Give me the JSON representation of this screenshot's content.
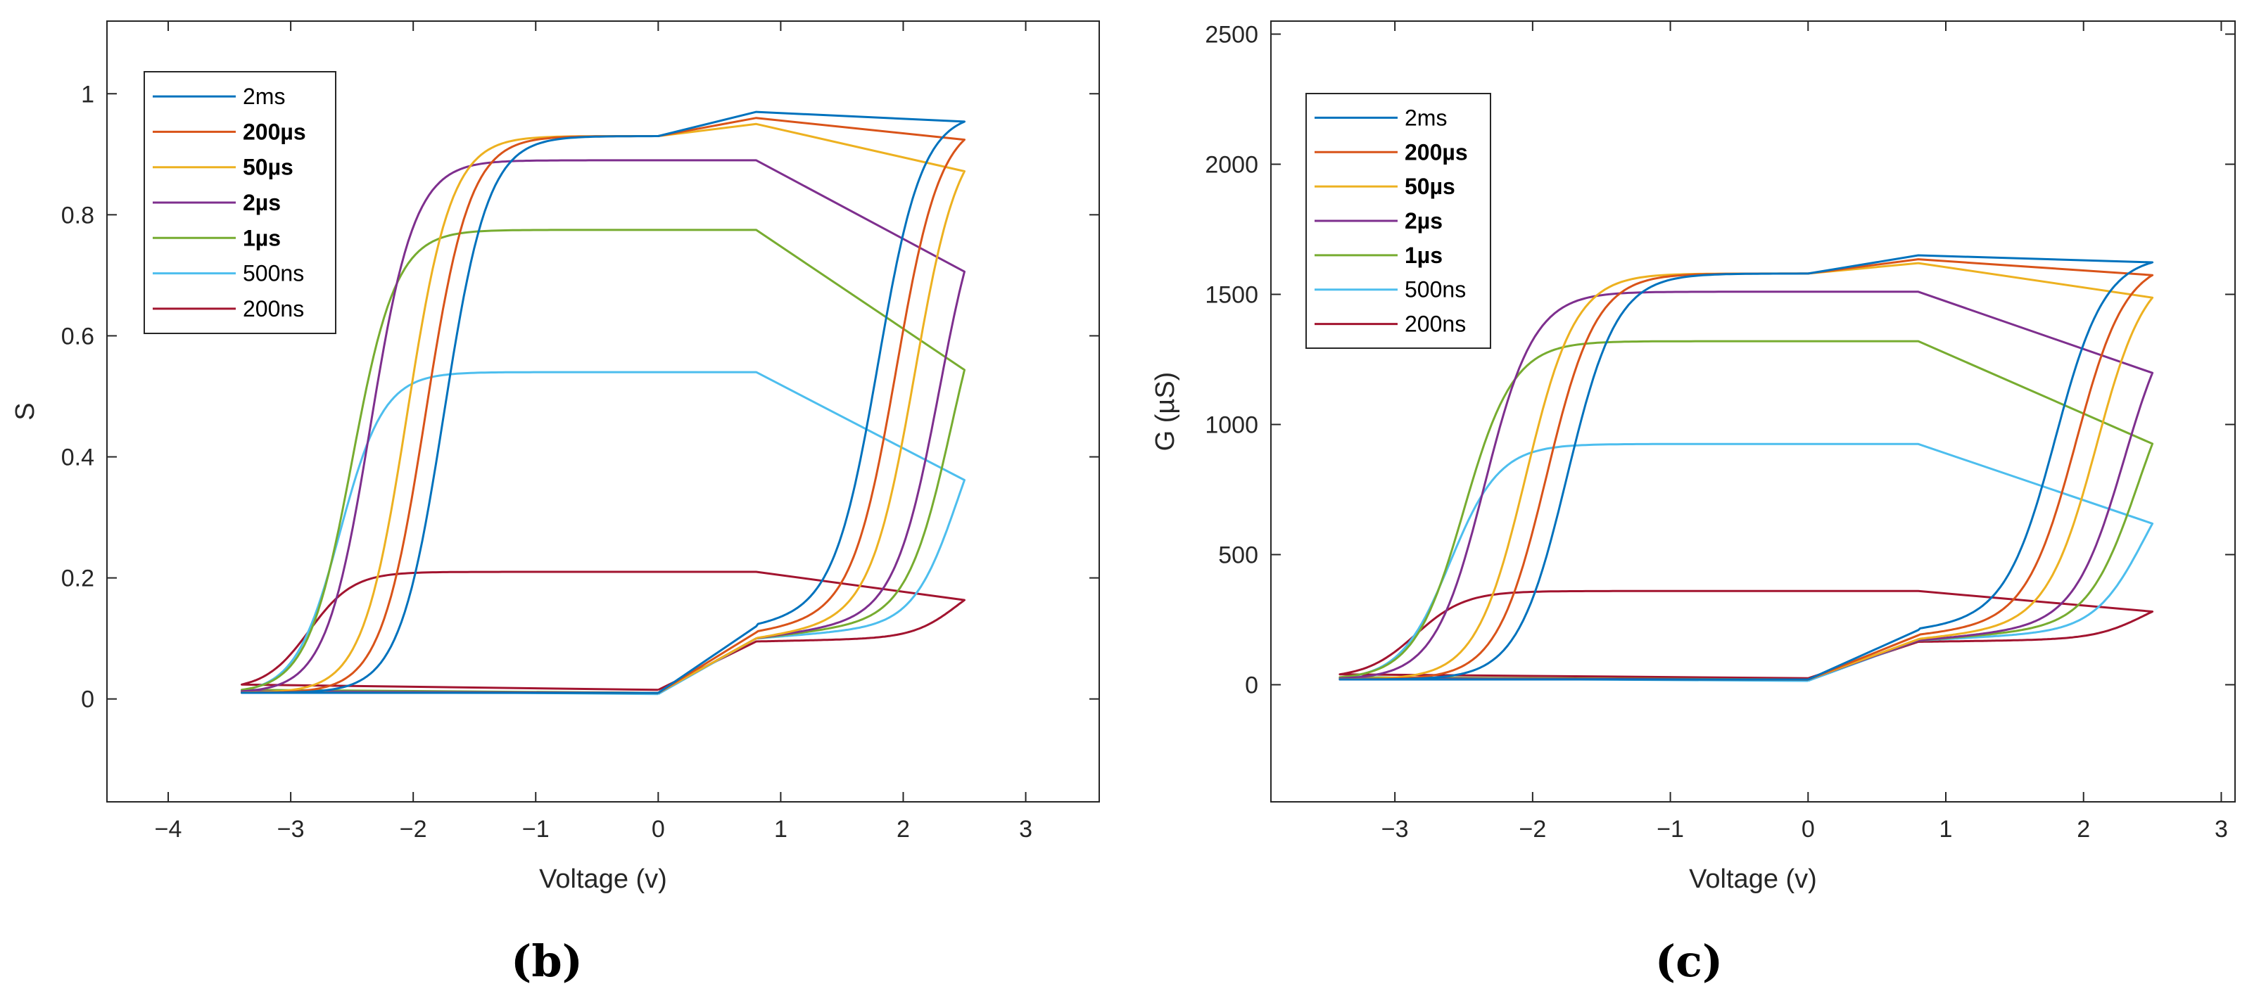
{
  "colors": {
    "2ms": "#0072BD",
    "200us": "#D95319",
    "50us": "#EDB120",
    "2us": "#7E2F8E",
    "1us": "#77AC30",
    "500ns": "#4DBEEE",
    "200ns": "#A2142F",
    "axis": "#262626"
  },
  "chart_data": [
    {
      "type": "line",
      "panel": "(b)",
      "xlabel": "Voltage (v)",
      "ylabel": "S",
      "xlim": [
        -4.5,
        3.6
      ],
      "ylim": [
        -0.17,
        1.12
      ],
      "xticks": [
        -4,
        -3,
        -2,
        -1,
        0,
        1,
        2,
        3
      ],
      "xtick_labels": [
        "−4",
        "−3",
        "−2",
        "−1",
        "0",
        "1",
        "2",
        "3"
      ],
      "yticks": [
        0,
        0.2,
        0.4,
        0.6,
        0.8,
        1
      ],
      "ytick_labels": [
        "0",
        "0.2",
        "0.4",
        "0.6",
        "0.8",
        "1"
      ],
      "legend_position": "top-left",
      "sweep": {
        "vmin": -3.4,
        "vmax": 2.5,
        "vmid": 0.8
      },
      "series": [
        {
          "name": "2ms",
          "label_bold": false,
          "color_key": "2ms",
          "high": 0.97,
          "low": 0.01,
          "mid_low": 0.12,
          "set_v": 1.8,
          "reset_v": -1.75,
          "slope": 0.0048,
          "plateau_hi_start": 0.93
        },
        {
          "name": "200µs",
          "label_bold": true,
          "color_key": "200us",
          "high": 0.96,
          "low": 0.01,
          "mid_low": 0.11,
          "set_v": 1.95,
          "reset_v": -1.9,
          "slope": 0.0048,
          "plateau_hi_start": 0.93
        },
        {
          "name": "50µs",
          "label_bold": true,
          "color_key": "50us",
          "high": 0.95,
          "low": 0.01,
          "mid_low": 0.1,
          "set_v": 2.1,
          "reset_v": -2.05,
          "slope": 0.0048,
          "plateau_hi_start": 0.93
        },
        {
          "name": "2µs",
          "label_bold": true,
          "color_key": "2us",
          "high": 0.89,
          "low": 0.01,
          "mid_low": 0.1,
          "set_v": 2.3,
          "reset_v": -2.35,
          "slope": 0.003,
          "plateau_hi_start": 0.89
        },
        {
          "name": "1µs",
          "label_bold": true,
          "color_key": "1us",
          "high": 0.775,
          "low": 0.01,
          "mid_low": 0.1,
          "set_v": 2.4,
          "reset_v": -2.5,
          "slope": 0.003,
          "plateau_hi_start": 0.775
        },
        {
          "name": "500ns",
          "label_bold": false,
          "color_key": "500ns",
          "high": 0.54,
          "low": 0.008,
          "mid_low": 0.1,
          "set_v": 2.45,
          "reset_v": -2.6,
          "slope": 0.003,
          "plateau_hi_start": 0.54
        },
        {
          "name": "200ns",
          "label_bold": false,
          "color_key": "200ns",
          "high": 0.21,
          "low": 0.015,
          "mid_low": 0.095,
          "set_v": 2.45,
          "reset_v": -2.85,
          "slope": 0.003,
          "plateau_hi_start": 0.21
        }
      ]
    },
    {
      "type": "line",
      "panel": "(c)",
      "xlabel": "Voltage (v)",
      "ylabel": "G (µS)",
      "xlim": [
        -3.9,
        3.1
      ],
      "ylim": [
        -450,
        2550
      ],
      "xticks": [
        -3,
        -2,
        -1,
        0,
        1,
        2,
        3
      ],
      "xtick_labels": [
        "−3",
        "−2",
        "−1",
        "0",
        "1",
        "2",
        "3"
      ],
      "yticks": [
        0,
        500,
        1000,
        1500,
        2000,
        2500
      ],
      "ytick_labels": [
        "0",
        "500",
        "1000",
        "1500",
        "2000",
        "2500"
      ],
      "legend_position": "top-left",
      "sweep": {
        "vmin": -3.4,
        "vmax": 2.5,
        "vmid": 0.8
      },
      "series": [
        {
          "name": "2ms",
          "label_bold": false,
          "color_key": "2ms",
          "high": 1650,
          "low": 20,
          "mid_low": 210,
          "set_v": 1.8,
          "reset_v": -1.75,
          "slope": 8,
          "plateau_hi_start": 1580
        },
        {
          "name": "200µs",
          "label_bold": true,
          "color_key": "200us",
          "high": 1635,
          "low": 20,
          "mid_low": 190,
          "set_v": 1.95,
          "reset_v": -1.9,
          "slope": 8,
          "plateau_hi_start": 1580
        },
        {
          "name": "50µs",
          "label_bold": true,
          "color_key": "50us",
          "high": 1620,
          "low": 20,
          "mid_low": 175,
          "set_v": 2.1,
          "reset_v": -2.05,
          "slope": 8,
          "plateau_hi_start": 1580
        },
        {
          "name": "2µs",
          "label_bold": true,
          "color_key": "2us",
          "high": 1510,
          "low": 20,
          "mid_low": 170,
          "set_v": 2.3,
          "reset_v": -2.35,
          "slope": 5,
          "plateau_hi_start": 1510
        },
        {
          "name": "1µs",
          "label_bold": true,
          "color_key": "1us",
          "high": 1320,
          "low": 20,
          "mid_low": 170,
          "set_v": 2.4,
          "reset_v": -2.5,
          "slope": 5,
          "plateau_hi_start": 1320
        },
        {
          "name": "500ns",
          "label_bold": false,
          "color_key": "500ns",
          "high": 925,
          "low": 15,
          "mid_low": 170,
          "set_v": 2.45,
          "reset_v": -2.6,
          "slope": 5,
          "plateau_hi_start": 925
        },
        {
          "name": "200ns",
          "label_bold": false,
          "color_key": "200ns",
          "high": 360,
          "low": 25,
          "mid_low": 165,
          "set_v": 2.45,
          "reset_v": -2.85,
          "slope": 5,
          "plateau_hi_start": 360
        }
      ]
    }
  ]
}
